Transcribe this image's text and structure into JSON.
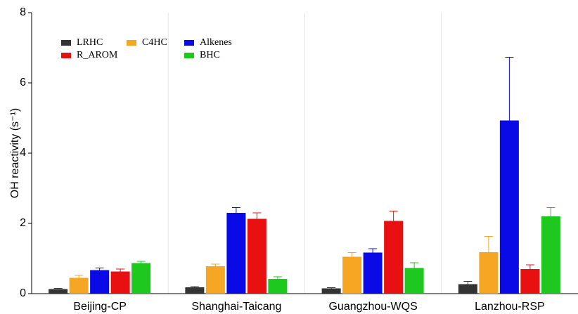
{
  "chart_data": {
    "type": "bar",
    "y_label": "OH reactivity (s⁻¹)",
    "categories": [
      "Beijing-CP",
      "Shanghai-Taicang",
      "Guangzhou-WQS",
      "Lanzhou-RSP"
    ],
    "series": [
      {
        "name": "LRHC",
        "color": "#333333",
        "values": [
          0.13,
          0.18,
          0.15,
          0.27
        ],
        "errors": [
          0.02,
          0.02,
          0.02,
          0.08
        ]
      },
      {
        "name": "C4HC",
        "color": "#f5a623",
        "values": [
          0.45,
          0.78,
          1.05,
          1.18
        ],
        "errors": [
          0.07,
          0.06,
          0.12,
          0.45
        ]
      },
      {
        "name": "Alkenes",
        "color": "#0a0ae6",
        "values": [
          0.67,
          2.3,
          1.17,
          4.93
        ],
        "errors": [
          0.06,
          0.15,
          0.11,
          1.8
        ]
      },
      {
        "name": "R_AROM",
        "color": "#e81010",
        "values": [
          0.63,
          2.13,
          2.07,
          0.7
        ],
        "errors": [
          0.07,
          0.17,
          0.28,
          0.12
        ]
      },
      {
        "name": "BHC",
        "color": "#1ec81e",
        "values": [
          0.87,
          0.42,
          0.73,
          2.2
        ],
        "errors": [
          0.05,
          0.06,
          0.15,
          0.25
        ]
      }
    ],
    "ylim": [
      0,
      8
    ],
    "yticks": [
      0,
      2,
      4,
      6,
      8
    ],
    "legend": "upper left"
  }
}
